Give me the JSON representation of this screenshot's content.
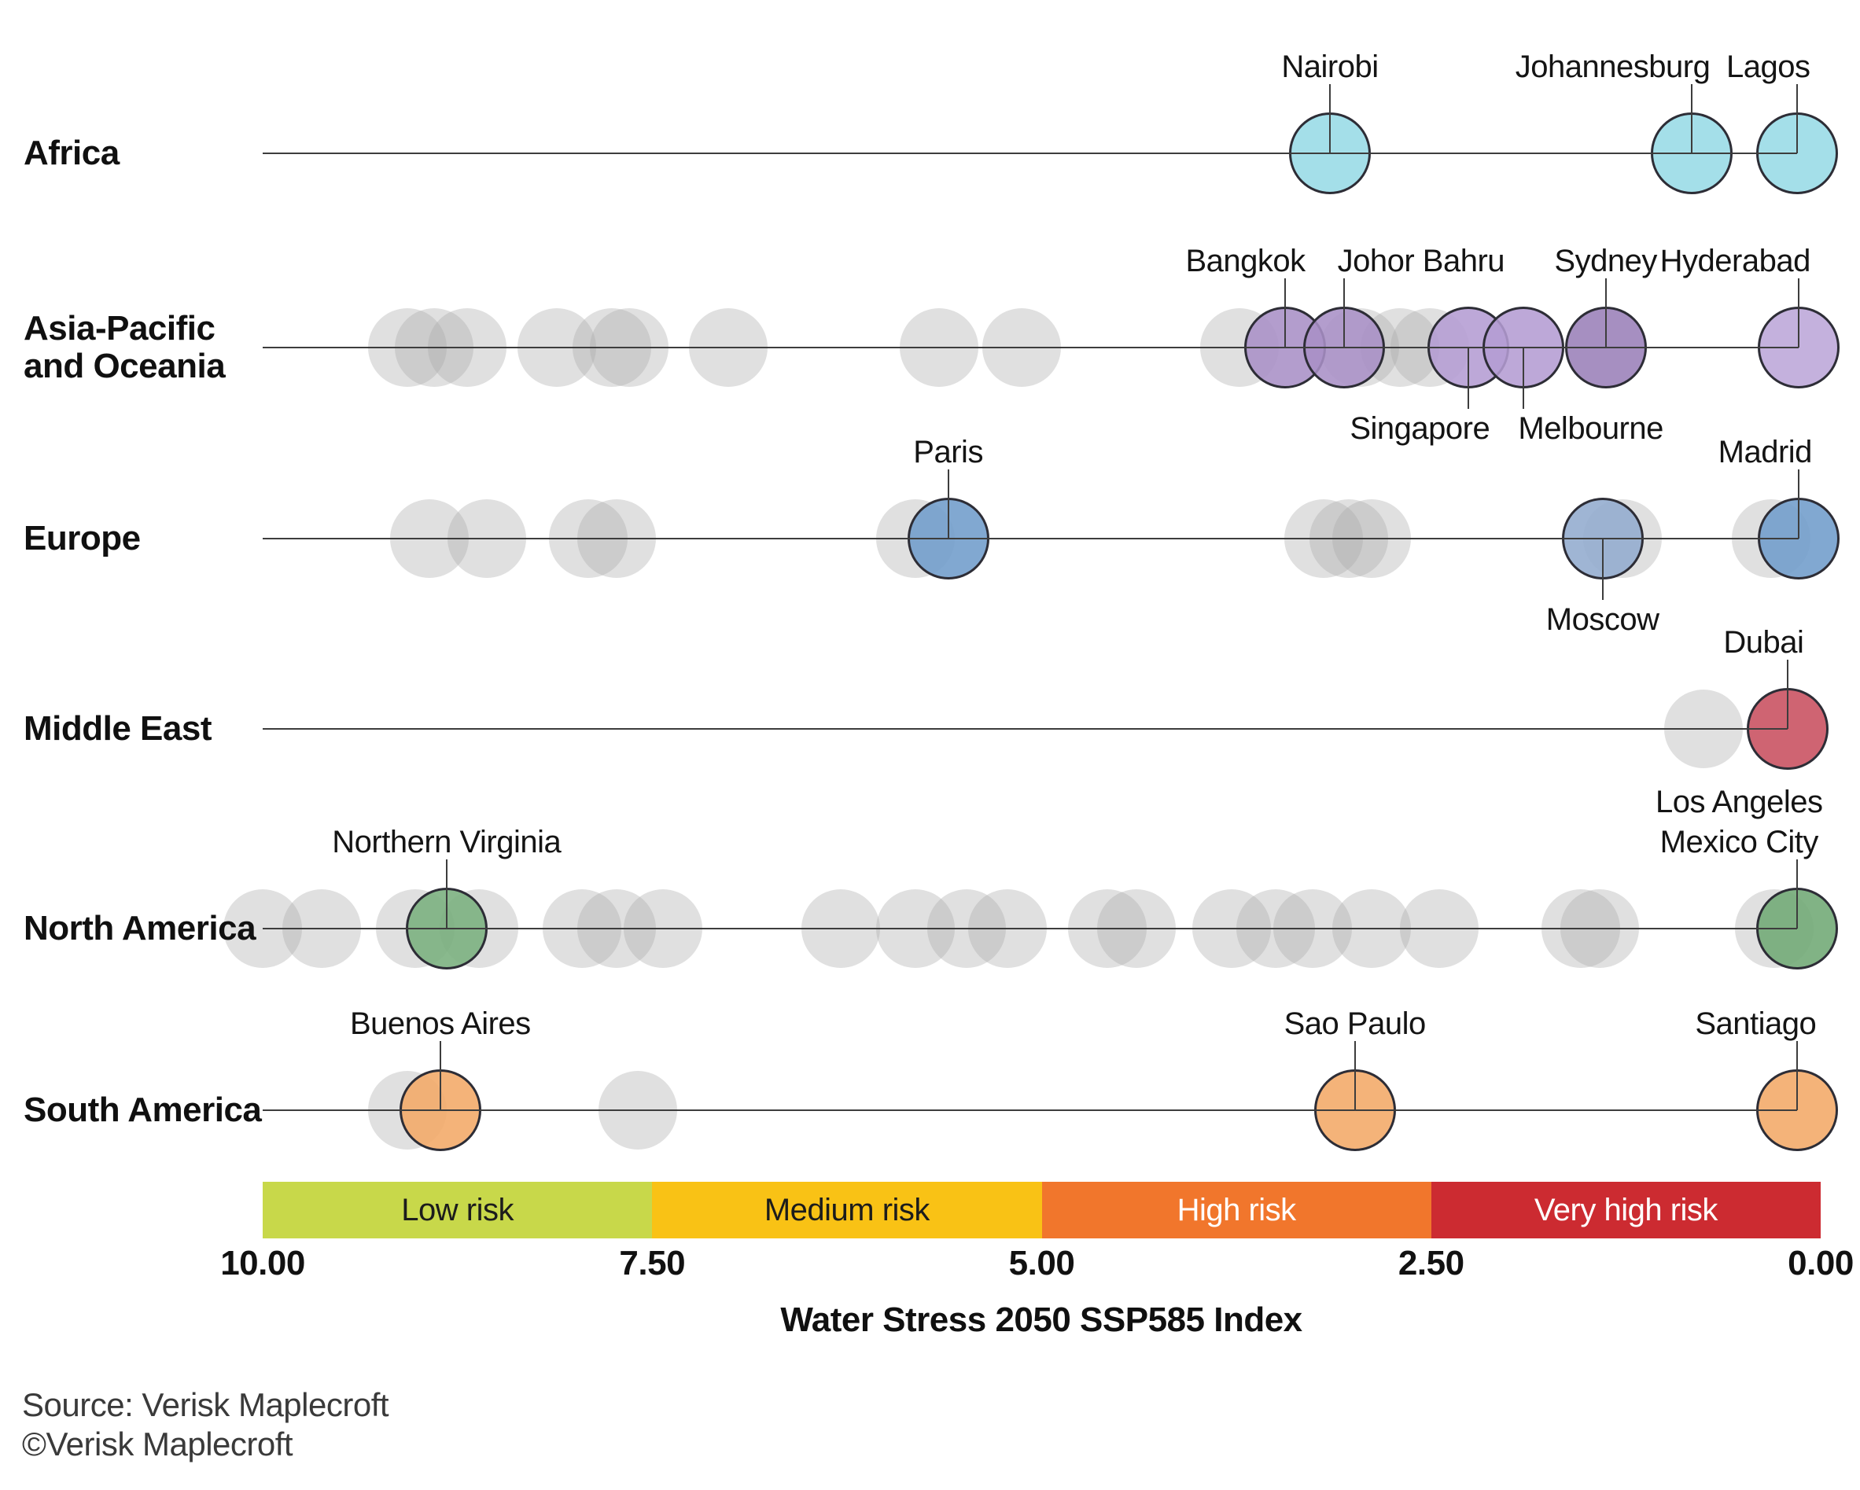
{
  "meta": {
    "axis_title": "Water Stress 2050 SSP585 Index",
    "source_line1": "Source: Verisk Maplecroft",
    "source_line2": "©Verisk Maplecroft"
  },
  "chart_data": {
    "type": "scatter",
    "title": "Water Stress 2050 SSP585 Index",
    "xlabel": "Water Stress 2050 SSP585 Index",
    "axis": {
      "ticks": [
        "10.00",
        "7.50",
        "5.00",
        "2.50",
        "0.00"
      ],
      "tick_values": [
        10,
        7.5,
        5,
        2.5,
        0
      ],
      "orientation": "reversed, 10 at left and 0 at right",
      "grid": false
    },
    "risk_bands": [
      {
        "label": "Low risk",
        "from": 10,
        "to": 7.5,
        "color": "#c8d84a",
        "text_color": "#1c1c1c"
      },
      {
        "label": "Medium risk",
        "from": 7.5,
        "to": 5,
        "color": "#f9c215",
        "text_color": "#1c1c1c"
      },
      {
        "label": "High risk",
        "from": 5,
        "to": 2.5,
        "color": "#f1762c",
        "text_color": "#ffffff"
      },
      {
        "label": "Very high risk",
        "from": 2.5,
        "to": 0,
        "color": "#cc2b31",
        "text_color": "#ffffff"
      }
    ],
    "rows": [
      {
        "region": "Africa",
        "region_lines": [
          "Africa"
        ],
        "line_end_value": 0.15,
        "highlights": [
          {
            "city": "Nairobi",
            "value": 3.15,
            "fill": "#97dbe6",
            "label_side": "above",
            "label_dx": 0,
            "label_lines": [
              "Nairobi"
            ]
          },
          {
            "city": "Johannesburg",
            "value": 0.83,
            "fill": "#97dbe6",
            "label_side": "above",
            "label_dx": -100,
            "label_lines": [
              "Johannesburg"
            ]
          },
          {
            "city": "Lagos",
            "value": 0.15,
            "fill": "#97dbe6",
            "label_side": "above",
            "label_dx": -37,
            "label_lines": [
              "Lagos"
            ]
          }
        ],
        "background_values": []
      },
      {
        "region": "Asia-Pacific and Oceania",
        "region_lines": [
          "Asia-Pacific",
          "and Oceania"
        ],
        "line_end_value": 0.14,
        "highlights": [
          {
            "city": "Bangkok",
            "value": 3.44,
            "fill": "#a98fc6",
            "label_side": "above",
            "label_dx": -50,
            "label_lines": [
              "Bangkok"
            ]
          },
          {
            "city": "Johor Bahru",
            "value": 3.06,
            "fill": "#a98fc6",
            "label_side": "above",
            "label_dx": 98,
            "label_lines": [
              "Johor Bahru"
            ]
          },
          {
            "city": "Singapore",
            "value": 2.26,
            "fill": "#b49cd3",
            "label_side": "below",
            "label_dx": -62,
            "label_lines": [
              "Singapore"
            ]
          },
          {
            "city": "Melbourne",
            "value": 1.91,
            "fill": "#b49cd3",
            "label_side": "below",
            "label_dx": 86,
            "label_lines": [
              "Melbourne"
            ]
          },
          {
            "city": "Sydney",
            "value": 1.38,
            "fill": "#9a80b8",
            "label_side": "above",
            "label_dx": 0,
            "label_lines": [
              "Sydney"
            ]
          },
          {
            "city": "Hyderabad",
            "value": 0.14,
            "fill": "#bca6d8",
            "label_side": "above",
            "label_dx": -81,
            "label_lines": [
              "Hyderabad"
            ]
          }
        ],
        "background_values": [
          9.07,
          8.9,
          8.69,
          8.11,
          7.76,
          7.65,
          7.01,
          5.66,
          5.13,
          3.73,
          2.96,
          2.7,
          2.51
        ]
      },
      {
        "region": "Europe",
        "region_lines": [
          "Europe"
        ],
        "line_end_value": 0.14,
        "highlights": [
          {
            "city": "Paris",
            "value": 5.6,
            "fill": "#6f9ccb",
            "label_side": "above",
            "label_dx": 0,
            "label_lines": [
              "Paris"
            ]
          },
          {
            "city": "Moscow",
            "value": 1.4,
            "fill": "#92abce",
            "label_side": "below",
            "label_dx": 0,
            "label_lines": [
              "Moscow"
            ]
          },
          {
            "city": "Madrid",
            "value": 0.14,
            "fill": "#6f9ccb",
            "label_side": "above",
            "label_dx": -43,
            "label_lines": [
              "Madrid"
            ]
          }
        ],
        "background_values": [
          8.93,
          8.56,
          7.91,
          7.73,
          5.81,
          3.19,
          3.03,
          2.88,
          1.27,
          0.32
        ]
      },
      {
        "region": "Middle East",
        "region_lines": [
          "Middle East"
        ],
        "line_end_value": 0.21,
        "highlights": [
          {
            "city": "Dubai",
            "value": 0.21,
            "fill": "#c84f5e",
            "label_side": "above",
            "label_dx": -31,
            "label_lines": [
              "Dubai"
            ]
          }
        ],
        "background_values": [
          0.75
        ]
      },
      {
        "region": "North America",
        "region_lines": [
          "North America"
        ],
        "line_end_value": 0.15,
        "highlights": [
          {
            "city": "Northern Virginia",
            "value": 8.82,
            "fill": "#79af7d",
            "label_side": "above",
            "label_dx": 0,
            "label_lines": [
              "Northern Virginia"
            ]
          },
          {
            "city": "Los Angeles / Mexico City",
            "value": 0.15,
            "fill": "#6fa874",
            "label_side": "above",
            "label_dx": -74,
            "label_lines": [
              "Los Angeles",
              "Mexico City"
            ]
          }
        ],
        "background_values": [
          10.0,
          9.62,
          9.02,
          8.61,
          7.95,
          7.73,
          7.43,
          6.29,
          5.81,
          5.48,
          5.22,
          4.58,
          4.39,
          3.78,
          3.5,
          3.26,
          2.88,
          2.45,
          1.54,
          1.42,
          0.3
        ]
      },
      {
        "region": "South America",
        "region_lines": [
          "South America"
        ],
        "line_end_value": 0.15,
        "highlights": [
          {
            "city": "Buenos Aires",
            "value": 8.86,
            "fill": "#f2a966",
            "label_side": "above",
            "label_dx": 0,
            "label_lines": [
              "Buenos Aires"
            ]
          },
          {
            "city": "Sao Paulo",
            "value": 2.99,
            "fill": "#f2a966",
            "label_side": "above",
            "label_dx": 0,
            "label_lines": [
              "Sao Paulo"
            ]
          },
          {
            "city": "Santiago",
            "value": 0.15,
            "fill": "#f2a966",
            "label_side": "above",
            "label_dx": -53,
            "label_lines": [
              "Santiago"
            ]
          }
        ],
        "background_values": [
          9.07,
          7.59
        ]
      }
    ]
  }
}
